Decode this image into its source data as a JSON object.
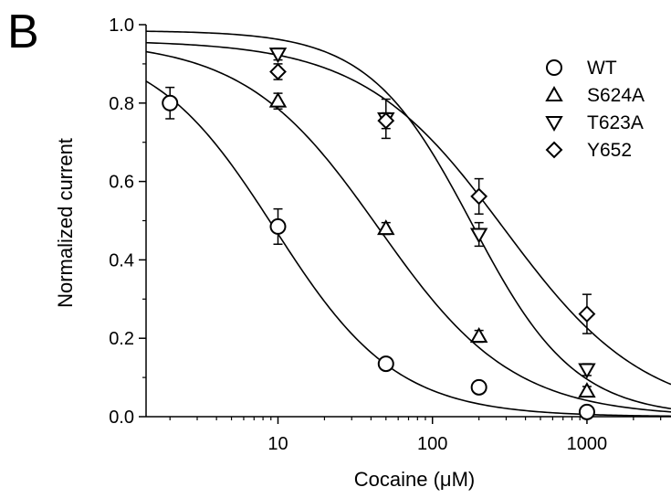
{
  "panel_label": "B",
  "chart_data": {
    "type": "scatter",
    "xlabel": "Cocaine (μM)",
    "ylabel": "Normalized current",
    "xscale": "log",
    "xlim": [
      1.4,
      3500
    ],
    "ylim": [
      0,
      1.0
    ],
    "xticks": [
      10,
      100,
      1000
    ],
    "xtick_labels": [
      "10",
      "100",
      "1000"
    ],
    "yticks": [
      0.0,
      0.2,
      0.4,
      0.6,
      0.8,
      1.0
    ],
    "ytick_labels": [
      "0.0",
      "0.2",
      "0.4",
      "0.6",
      "0.8",
      "1.0"
    ],
    "grid": false,
    "legend_position": "top-right",
    "series": [
      {
        "name": "WT",
        "marker": "circle",
        "x": [
          2,
          10,
          50,
          200,
          1000
        ],
        "y": [
          0.8,
          0.485,
          0.135,
          0.075,
          0.012
        ],
        "err": [
          0.04,
          0.045,
          0.012,
          0.012,
          0.008
        ],
        "fit": {
          "top": 0.96,
          "ic50": 9.5,
          "hill": 1.1
        }
      },
      {
        "name": "S624A",
        "marker": "triangle-up",
        "x": [
          10,
          50,
          200,
          1000
        ],
        "y": [
          0.805,
          0.48,
          0.205,
          0.065
        ],
        "err": [
          0.02,
          0.015,
          0.015,
          0.012
        ],
        "fit": {
          "top": 0.96,
          "ic50": 45,
          "hill": 1.0
        }
      },
      {
        "name": "T623A",
        "marker": "triangle-down",
        "x": [
          10,
          50,
          200,
          1000
        ],
        "y": [
          0.925,
          0.76,
          0.465,
          0.12
        ],
        "err": [
          0.015,
          0.05,
          0.03,
          0.015
        ],
        "fit": {
          "top": 0.985,
          "ic50": 180,
          "hill": 1.3
        }
      },
      {
        "name": "Y652",
        "marker": "diamond",
        "x": [
          10,
          50,
          200,
          1000
        ],
        "y": [
          0.88,
          0.755,
          0.562,
          0.262
        ],
        "err": [
          0.02,
          0.02,
          0.045,
          0.05
        ],
        "fit": {
          "top": 0.96,
          "ic50": 290,
          "hill": 0.95
        }
      }
    ]
  }
}
